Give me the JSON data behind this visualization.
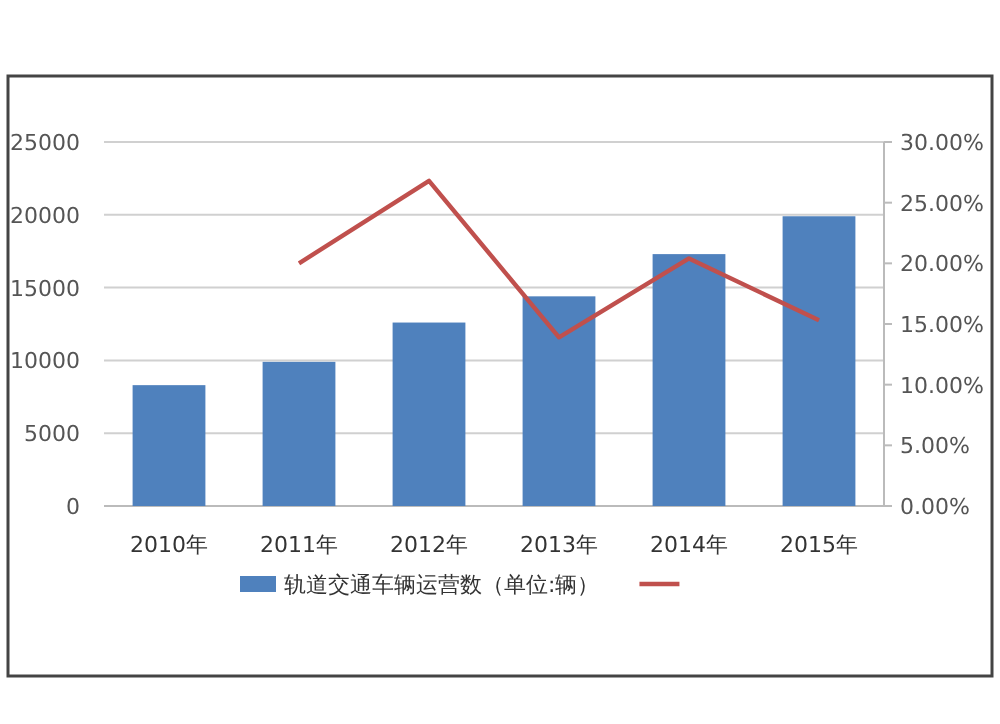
{
  "chart_data": {
    "type": "bar",
    "categories": [
      "2010年",
      "2011年",
      "2012年",
      "2013年",
      "2014年",
      "2015年"
    ],
    "series": [
      {
        "name": "轨道交通车辆运营数（单位:辆）",
        "color": "#4f81bd",
        "values": [
          8300,
          9900,
          12600,
          14400,
          17300,
          19900
        ]
      },
      {
        "type": "line",
        "axis": "y2",
        "color": "#c0504d",
        "values": [
          null,
          20.0,
          26.8,
          13.9,
          20.4,
          15.3
        ]
      }
    ],
    "ylim": [
      0,
      25000
    ],
    "yticks": [
      0,
      5000,
      10000,
      15000,
      20000,
      25000
    ],
    "y2lim": [
      0,
      30
    ],
    "y2ticks": [
      {
        "value": 0,
        "label": "0.00%"
      },
      {
        "value": 5,
        "label": "5.00%"
      },
      {
        "value": 10,
        "label": "10.00%"
      },
      {
        "value": 15,
        "label": "15.00%"
      },
      {
        "value": 20,
        "label": "20.00%"
      },
      {
        "value": 25,
        "label": "25.00%"
      },
      {
        "value": 30,
        "label": "30.00%"
      }
    ],
    "grid": "y",
    "legend": "bottom"
  }
}
